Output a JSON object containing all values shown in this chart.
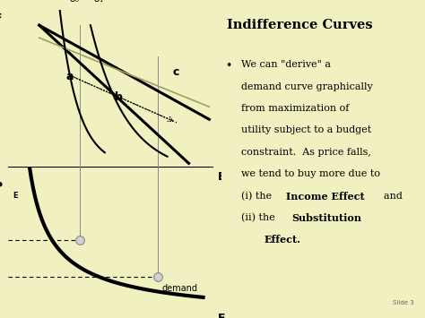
{
  "bg_color": "#f0f0c0",
  "title": "Indifference Curves",
  "slide_label": "Slide 3",
  "normal_lines": [
    "We can \"derive\" a",
    "demand curve graphically",
    "from maximization of",
    "utility subject to a budget",
    "constraint.  As price falls,",
    "we tend to buy more due to"
  ],
  "ie_prefix": "(i) the ",
  "ie_bold": "Income Effect",
  "ie_suffix": "  and",
  "sub_prefix": "(ii) the ",
  "sub_bold": "Substitution",
  "eff_bold": "Effect."
}
